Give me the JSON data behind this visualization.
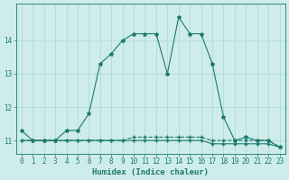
{
  "xlabel": "Humidex (Indice chaleur)",
  "x": [
    0,
    1,
    2,
    3,
    4,
    5,
    6,
    7,
    8,
    9,
    10,
    11,
    12,
    13,
    14,
    15,
    16,
    17,
    18,
    19,
    20,
    21,
    22,
    23
  ],
  "line1": [
    11.3,
    11.0,
    11.0,
    11.0,
    11.3,
    11.3,
    11.8,
    13.3,
    13.6,
    14.0,
    14.2,
    14.2,
    14.2,
    13.0,
    14.7,
    14.2,
    14.2,
    13.3,
    11.7,
    11.0,
    11.1,
    11.0,
    11.0,
    10.8
  ],
  "line2": [
    11.0,
    11.0,
    11.0,
    11.0,
    11.0,
    11.0,
    11.0,
    11.0,
    11.0,
    11.0,
    11.0,
    11.0,
    11.0,
    11.0,
    11.0,
    11.0,
    11.0,
    10.9,
    10.9,
    10.9,
    10.9,
    10.9,
    10.9,
    10.8
  ],
  "line3": [
    11.0,
    11.0,
    11.0,
    11.0,
    11.0,
    11.0,
    11.0,
    11.0,
    11.0,
    11.0,
    11.1,
    11.1,
    11.1,
    11.1,
    11.1,
    11.1,
    11.1,
    11.0,
    11.0,
    11.0,
    11.0,
    11.0,
    11.0,
    10.8
  ],
  "line_color": "#1a7a6e",
  "bg_color": "#ceecea",
  "grid_color": "#a8d8d4",
  "ylim": [
    10.6,
    15.1
  ],
  "yticks": [
    11,
    12,
    13,
    14
  ],
  "label_fontsize": 6.5,
  "tick_fontsize": 5.5
}
